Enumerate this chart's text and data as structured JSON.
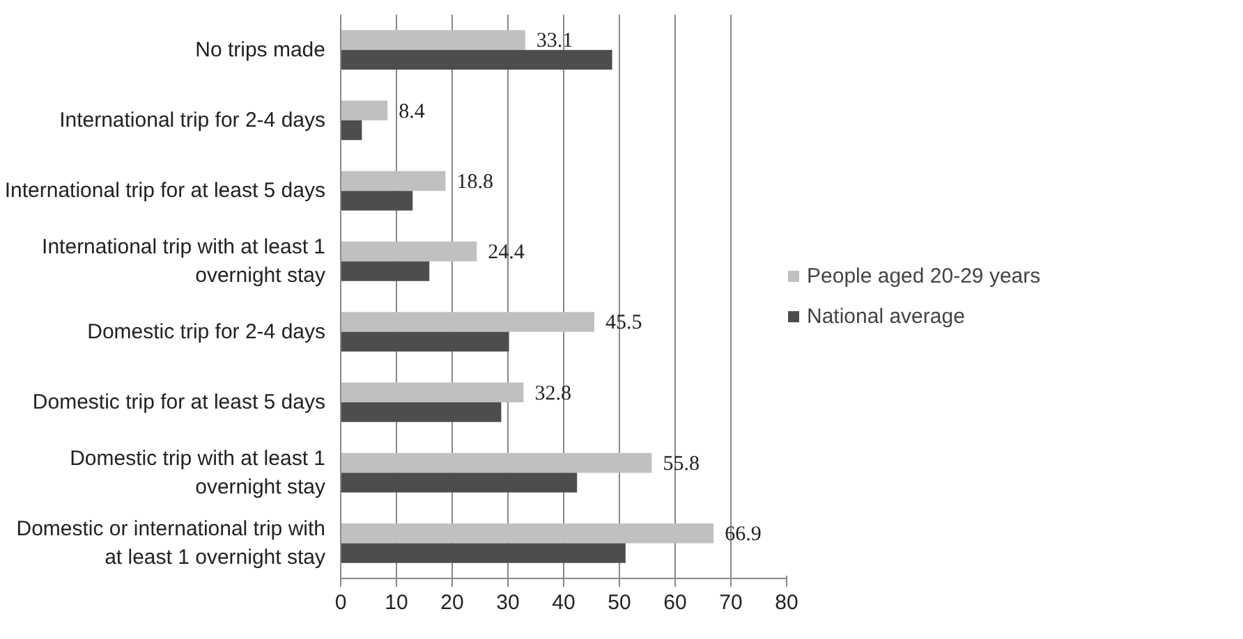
{
  "chart_data": {
    "type": "bar",
    "orientation": "horizontal",
    "categories": [
      "No trips made",
      "International trip for 2-4 days",
      "International trip for at least 5 days",
      "International trip with at least 1\novernight stay",
      "Domestic trip for 2-4 days",
      "Domestic trip for at least 5 days",
      "Domestic trip with at least 1\novernight stay",
      "Domestic or international trip with\nat least 1 overnight stay"
    ],
    "series": [
      {
        "name": "People aged 20-29 years",
        "color": "#c0c0c0",
        "values": [
          33.1,
          8.4,
          18.8,
          24.4,
          45.5,
          32.8,
          55.8,
          66.9
        ],
        "value_labels": [
          "33.1",
          "8.4",
          "18.8",
          "24.4",
          "45.5",
          "32.8",
          "55.8",
          "66.9"
        ]
      },
      {
        "name": "National average",
        "color": "#4d4d4d",
        "values": [
          48.7,
          3.8,
          12.9,
          15.9,
          30.2,
          28.8,
          42.4,
          51.1
        ]
      }
    ],
    "xlim": [
      0,
      80
    ],
    "xticks": [
      0,
      10,
      20,
      30,
      40,
      50,
      60,
      70,
      80
    ],
    "grid": "x",
    "legend": "right"
  }
}
